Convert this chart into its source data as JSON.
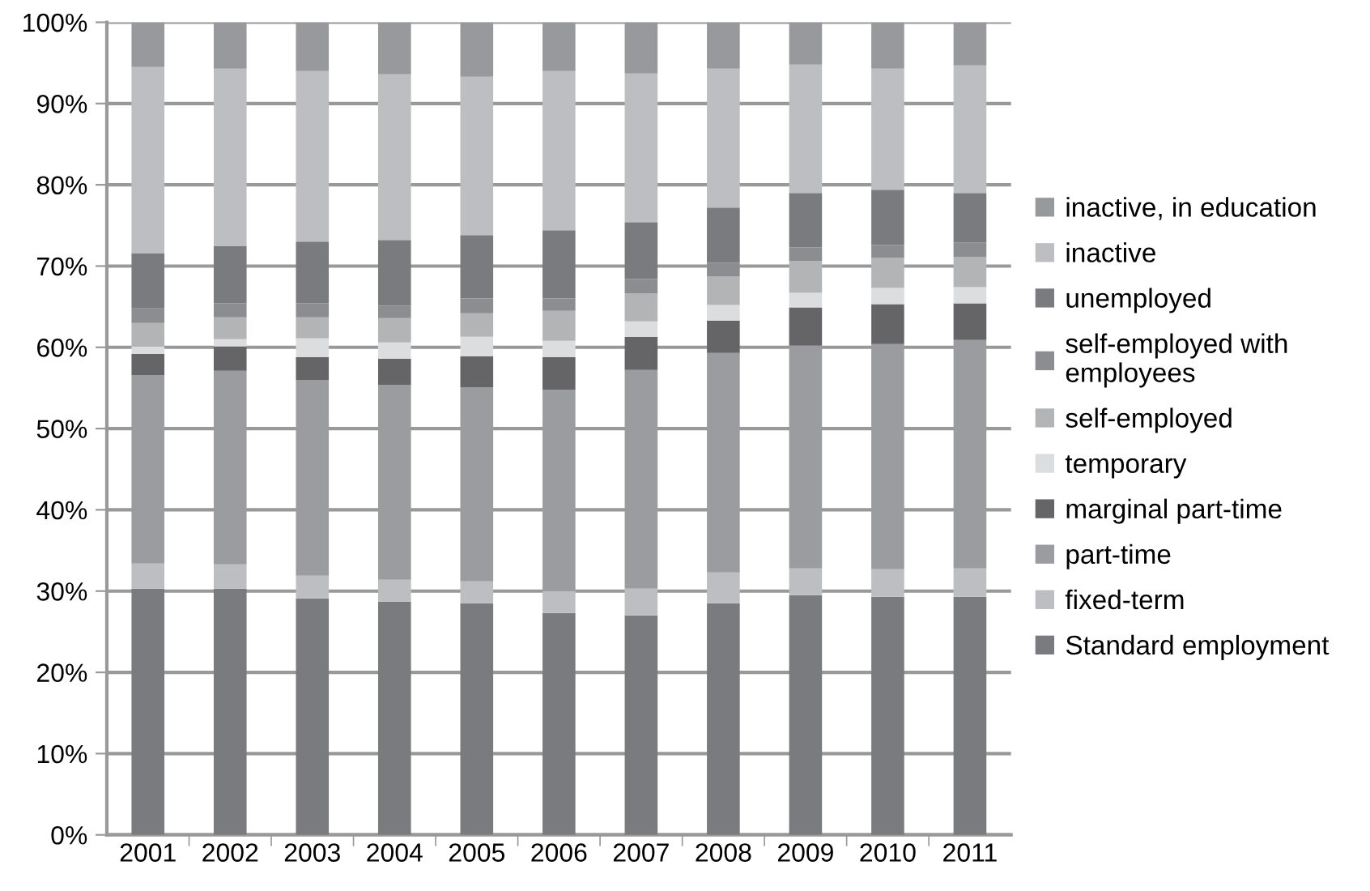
{
  "chart_data": {
    "type": "bar",
    "stacked": true,
    "categories": [
      "2001",
      "2002",
      "2003",
      "2004",
      "2005",
      "2006",
      "2007",
      "2008",
      "2009",
      "2010",
      "2011"
    ],
    "series": [
      {
        "name": "Standard employment",
        "color": "#7a7b7f",
        "values": [
          30.3,
          30.3,
          29.1,
          28.7,
          28.5,
          27.3,
          27.0,
          28.5,
          29.5,
          29.3,
          29.3
        ]
      },
      {
        "name": "fixed-term",
        "color": "#bdbec1",
        "values": [
          3.1,
          3.0,
          2.8,
          2.7,
          2.7,
          2.7,
          3.3,
          3.8,
          3.3,
          3.4,
          3.5
        ]
      },
      {
        "name": "part-time",
        "color": "#9b9c9f",
        "values": [
          23.2,
          23.8,
          24.1,
          24.0,
          23.9,
          24.8,
          26.9,
          27.0,
          27.4,
          27.7,
          28.1
        ]
      },
      {
        "name": "marginal part-time",
        "color": "#656567",
        "values": [
          2.6,
          3.0,
          2.8,
          3.2,
          3.8,
          4.0,
          4.1,
          4.0,
          4.7,
          4.9,
          4.5
        ]
      },
      {
        "name": "temporary",
        "color": "#dcdddf",
        "values": [
          0.9,
          0.9,
          2.3,
          2.0,
          2.4,
          2.0,
          1.9,
          1.9,
          1.8,
          2.0,
          2.0
        ]
      },
      {
        "name": "self-employed",
        "color": "#b3b4b6",
        "values": [
          2.9,
          2.7,
          2.6,
          3.0,
          2.9,
          3.7,
          3.4,
          3.5,
          3.9,
          3.7,
          3.7
        ]
      },
      {
        "name": "self-employed with\nemployees",
        "color": "#8c8d90",
        "values": [
          1.8,
          1.7,
          1.7,
          1.5,
          1.8,
          1.5,
          1.8,
          1.7,
          1.7,
          1.6,
          1.8
        ]
      },
      {
        "name": "unemployed",
        "color": "#7a7b7f",
        "values": [
          6.8,
          7.1,
          7.6,
          8.1,
          7.8,
          8.4,
          7.0,
          6.8,
          6.7,
          6.8,
          6.1
        ]
      },
      {
        "name": "inactive",
        "color": "#bdbec1",
        "values": [
          22.9,
          21.8,
          21.0,
          20.4,
          19.5,
          19.6,
          18.3,
          17.1,
          15.8,
          14.9,
          15.7
        ]
      },
      {
        "name": "inactive, in education",
        "color": "#98999c",
        "values": [
          5.5,
          5.7,
          6.0,
          6.4,
          6.7,
          6.0,
          6.3,
          5.7,
          5.2,
          5.7,
          5.3
        ]
      }
    ],
    "ylim": [
      0,
      100
    ],
    "yticks": [
      {
        "value": 0,
        "label": "0%"
      },
      {
        "value": 10,
        "label": "10%"
      },
      {
        "value": 20,
        "label": "20%"
      },
      {
        "value": 30,
        "label": "30%"
      },
      {
        "value": 40,
        "label": "40%"
      },
      {
        "value": 50,
        "label": "50%"
      },
      {
        "value": 60,
        "label": "60%"
      },
      {
        "value": 70,
        "label": "70%"
      },
      {
        "value": 80,
        "label": "80%"
      },
      {
        "value": 90,
        "label": "90%"
      },
      {
        "value": 100,
        "label": "100%"
      }
    ],
    "grid": "y",
    "legend": "right"
  }
}
